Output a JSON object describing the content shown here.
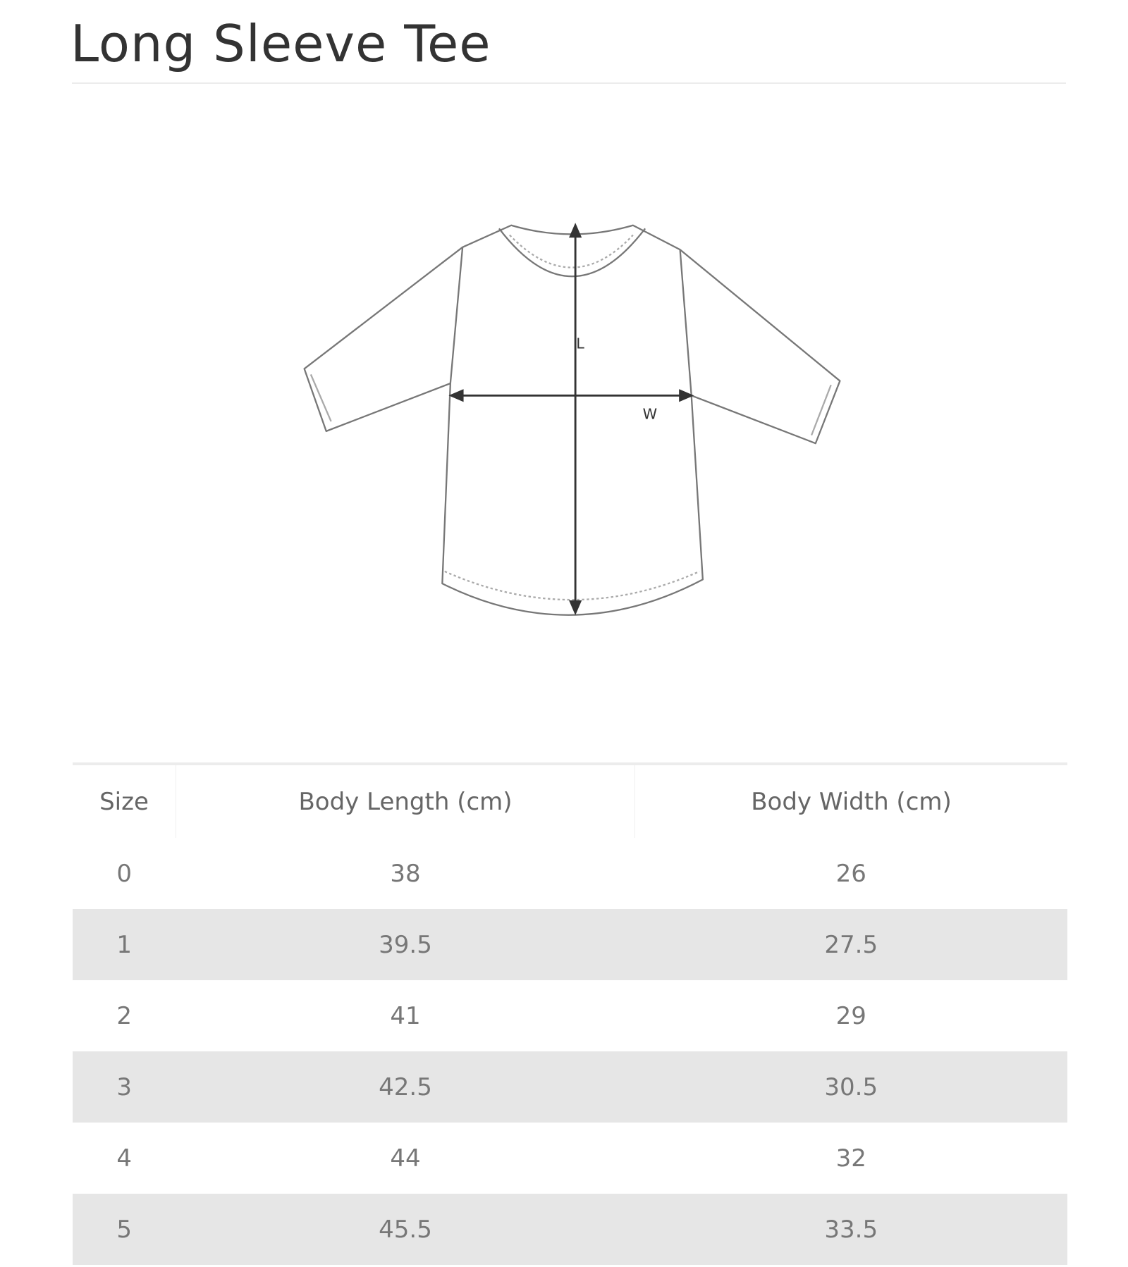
{
  "title": "Long Sleeve Tee",
  "diagram": {
    "length_label": "L",
    "width_label": "W"
  },
  "table": {
    "headers": [
      "Size",
      "Body Length (cm)",
      "Body Width (cm)"
    ],
    "rows": [
      [
        "0",
        "38",
        "26"
      ],
      [
        "1",
        "39.5",
        "27.5"
      ],
      [
        "2",
        "41",
        "29"
      ],
      [
        "3",
        "42.5",
        "30.5"
      ],
      [
        "4",
        "44",
        "32"
      ],
      [
        "5",
        "45.5",
        "33.5"
      ]
    ]
  }
}
